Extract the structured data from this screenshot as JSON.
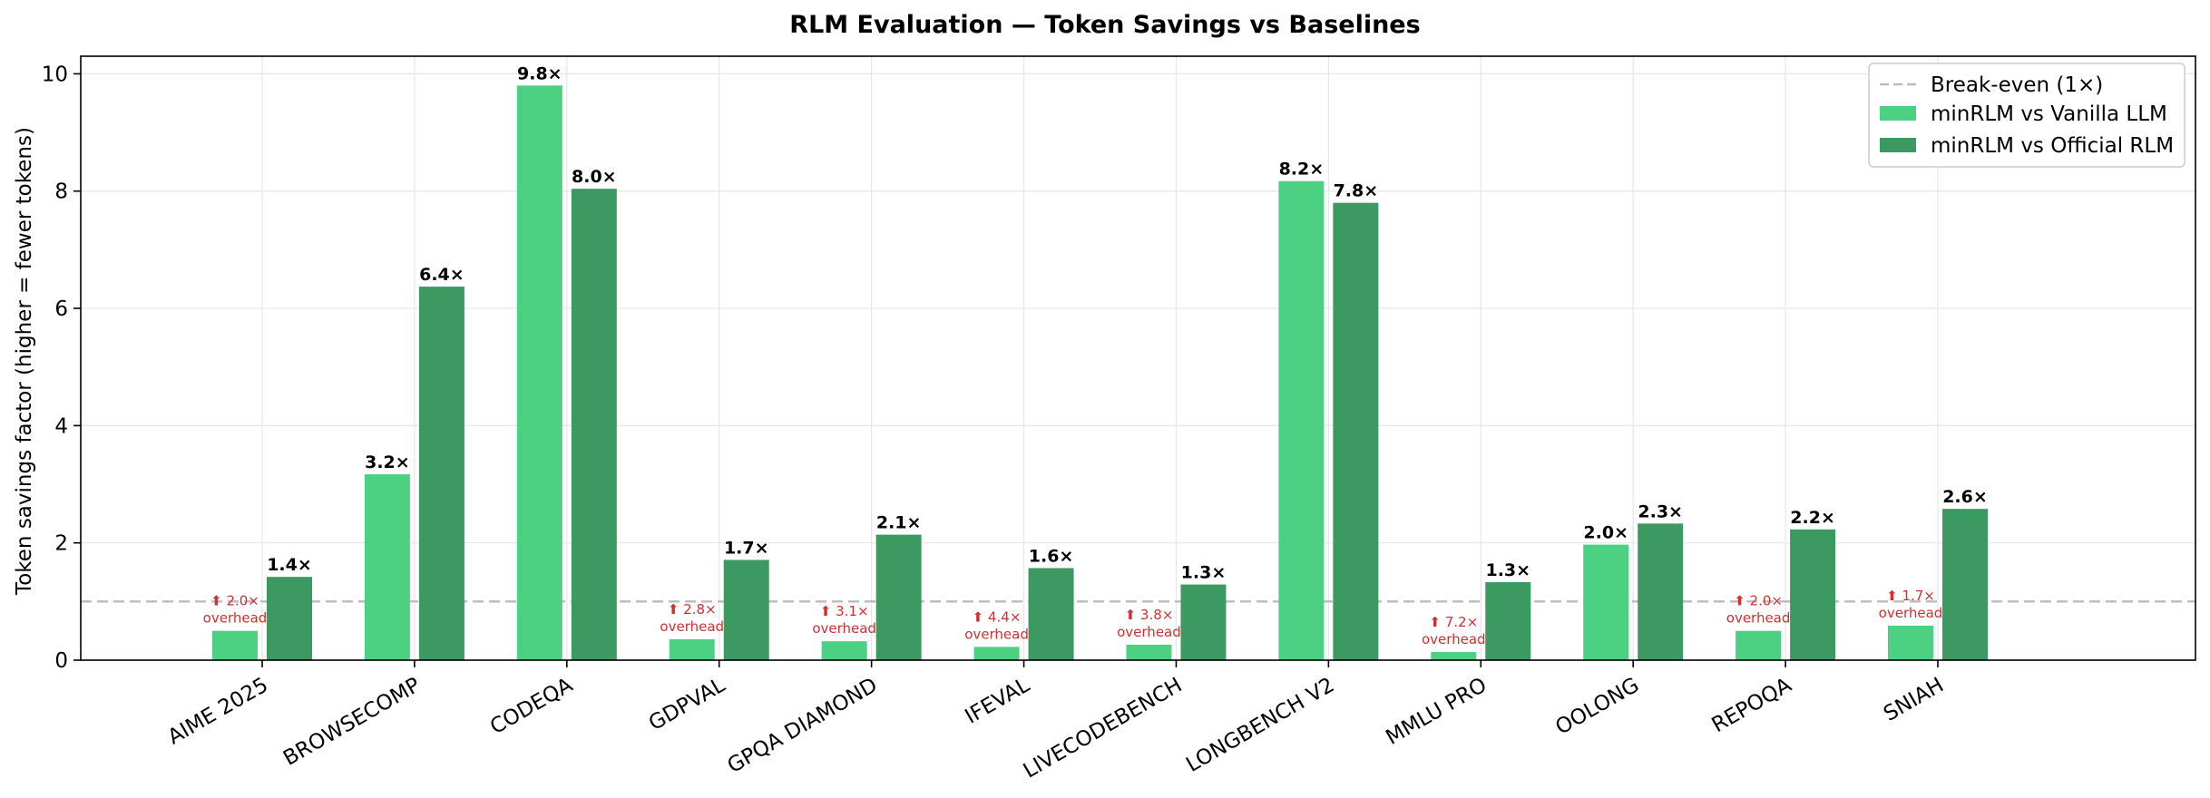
{
  "chart_data": {
    "type": "bar",
    "title": "RLM Evaluation — Token Savings vs Baselines",
    "xlabel": "",
    "ylabel": "Token savings factor (higher = fewer tokens)",
    "ylim": [
      0,
      10.3
    ],
    "yticks": [
      0,
      2,
      4,
      6,
      8,
      10
    ],
    "grid": true,
    "legend_position": "top-right",
    "reference_line": {
      "value": 1.0,
      "label": "Break-even (1×)",
      "color": "#bbbbbb"
    },
    "categories": [
      "AIME 2025",
      "BROWSECOMP",
      "CODEQA",
      "GDPVAL",
      "GPQA DIAMOND",
      "IFEVAL",
      "LIVECODEBENCH",
      "LONGBENCH V2",
      "MMLU PRO",
      "OOLONG",
      "REPOQA",
      "SNIAH"
    ],
    "series": [
      {
        "name": "minRLM vs Vanilla LLM",
        "color": "#4cd183",
        "values": [
          0.5,
          3.17,
          9.8,
          0.357,
          0.323,
          0.227,
          0.263,
          8.17,
          0.139,
          1.97,
          0.5,
          0.588
        ],
        "labels": [
          "⬆ 2.0×\noverhead",
          "3.2×",
          "9.8×",
          "⬆ 2.8×\noverhead",
          "⬆ 3.1×\noverhead",
          "⬆ 4.4×\noverhead",
          "⬆ 3.8×\noverhead",
          "8.2×",
          "⬆ 7.2×\noverhead",
          "2.0×",
          "⬆ 2.0×\noverhead",
          "⬆ 1.7×\noverhead"
        ],
        "overhead": [
          true,
          false,
          false,
          true,
          true,
          true,
          true,
          false,
          true,
          false,
          true,
          true
        ]
      },
      {
        "name": "minRLM vs Official RLM",
        "color": "#3c9962",
        "values": [
          1.42,
          6.37,
          8.04,
          1.71,
          2.14,
          1.57,
          1.29,
          7.8,
          1.33,
          2.33,
          2.23,
          2.58
        ],
        "labels": [
          "1.4×",
          "6.4×",
          "8.0×",
          "1.7×",
          "2.1×",
          "1.6×",
          "1.3×",
          "7.8×",
          "1.3×",
          "2.3×",
          "2.2×",
          "2.6×"
        ],
        "overhead": [
          false,
          false,
          false,
          false,
          false,
          false,
          false,
          false,
          false,
          false,
          false,
          false
        ]
      }
    ],
    "label_colors": {
      "normal": "#000000",
      "overhead": "#d03030"
    }
  }
}
